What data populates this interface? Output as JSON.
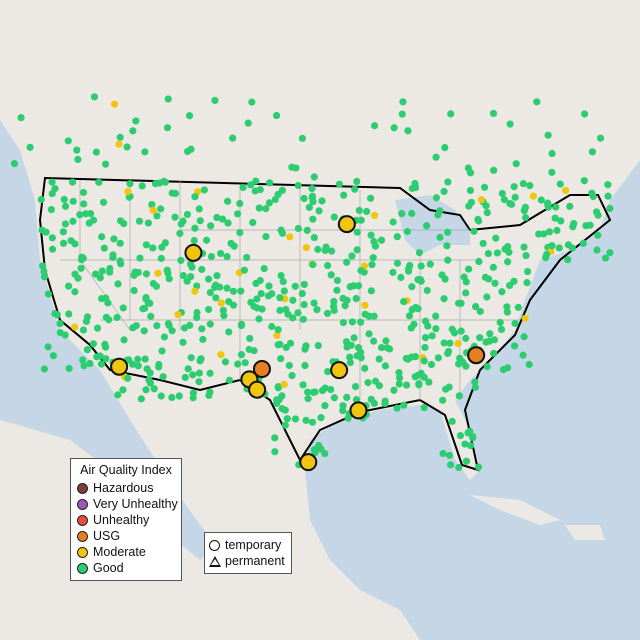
{
  "map": {
    "colors": {
      "land": "#ece9e4",
      "water": "#c5d7e6",
      "border": "#000000",
      "state_lines": "#a9a9a9"
    },
    "sites": [
      {
        "lat": 43.1,
        "lon": -109.1,
        "category": "Moderate",
        "type": "temporary"
      },
      {
        "lat": 45.6,
        "lon": -93.2,
        "category": "Moderate",
        "type": "temporary"
      },
      {
        "lat": 33.2,
        "lon": -116.8,
        "category": "Moderate",
        "type": "temporary"
      },
      {
        "lat": 33.0,
        "lon": -102.0,
        "category": "USG",
        "type": "temporary"
      },
      {
        "lat": 32.1,
        "lon": -103.3,
        "category": "Moderate",
        "type": "temporary"
      },
      {
        "lat": 31.2,
        "lon": -102.5,
        "category": "Moderate",
        "type": "temporary"
      },
      {
        "lat": 32.9,
        "lon": -94.0,
        "category": "Moderate",
        "type": "temporary"
      },
      {
        "lat": 29.4,
        "lon": -92.0,
        "category": "Moderate",
        "type": "temporary"
      },
      {
        "lat": 24.9,
        "lon": -97.2,
        "category": "Moderate",
        "type": "temporary"
      },
      {
        "lat": 34.2,
        "lon": -79.8,
        "category": "USG",
        "type": "temporary"
      }
    ]
  },
  "legend": {
    "title": "Air Quality Index",
    "items": [
      {
        "label": "Hazardous",
        "color": "#7e3b3b"
      },
      {
        "label": "Very Unhealthy",
        "color": "#9b59b6"
      },
      {
        "label": "Unhealthy",
        "color": "#e74c3c"
      },
      {
        "label": "USG",
        "color": "#e67e22"
      },
      {
        "label": "Moderate",
        "color": "#f1c40f"
      },
      {
        "label": "Good",
        "color": "#2ecc71"
      }
    ]
  },
  "shape_legend": {
    "temporary": "temporary",
    "permanent": "permanent"
  }
}
